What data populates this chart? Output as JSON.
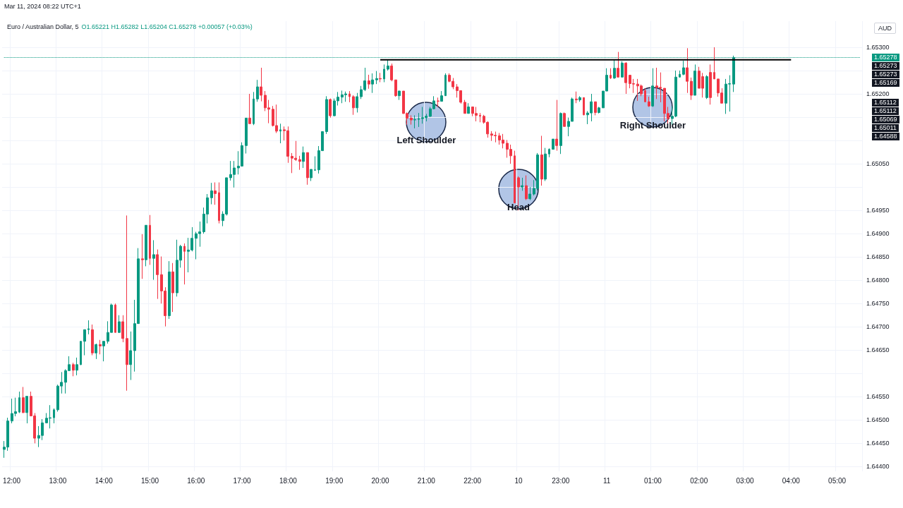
{
  "chart_data": {
    "type": "candlestick",
    "title": "Euro / Australian Dollar, 5",
    "subtitle": "O1.65221 H1.65282 L1.65204 C1.65278 +0.00057 (+0.03%)",
    "ylabel": "AUD",
    "categories": [
      null,
      null,
      "12:00",
      null,
      null,
      null,
      null,
      null,
      null,
      null,
      null,
      null,
      null,
      null,
      "13:00",
      null,
      null,
      null,
      null,
      null,
      null,
      null,
      null,
      null,
      null,
      null,
      "14:00",
      null,
      null,
      null,
      null,
      null,
      null,
      null,
      null,
      null,
      null,
      null,
      "15:00",
      null,
      null,
      null,
      null,
      null,
      null,
      null,
      null,
      null,
      null,
      null,
      "16:00",
      null,
      null,
      null,
      null,
      null,
      null,
      null,
      null,
      null,
      null,
      null,
      "17:00",
      null,
      null,
      null,
      null,
      null,
      null,
      null,
      null,
      null,
      null,
      null,
      "18:00",
      null,
      null,
      null,
      null,
      null,
      null,
      null,
      null,
      null,
      null,
      null,
      "19:00",
      null,
      null,
      null,
      null,
      null,
      null,
      null,
      null,
      null,
      null,
      null,
      "20:00",
      null,
      null,
      null,
      null,
      null,
      null,
      null,
      null,
      null,
      null,
      null,
      "21:00",
      null,
      null,
      null,
      null,
      null,
      null,
      null,
      null,
      null,
      null,
      null,
      "22:00",
      null,
      null,
      null,
      null,
      null,
      null,
      null,
      null,
      null,
      null,
      null,
      "10",
      null,
      null,
      null,
      null,
      null,
      null,
      null,
      null,
      null,
      null,
      "23:00",
      null,
      null,
      null,
      null,
      null,
      null,
      null,
      null,
      null,
      null,
      null,
      "11",
      null,
      null,
      null,
      null,
      null,
      null,
      null,
      null,
      null,
      null,
      null,
      "01:00",
      null,
      null,
      null,
      null,
      null,
      null,
      null,
      null,
      null,
      null,
      null,
      "02:00",
      null,
      null,
      null,
      null,
      null,
      null,
      null,
      null,
      null,
      null,
      null,
      "03:00",
      null,
      null,
      null,
      null,
      null,
      null,
      null,
      null,
      null,
      null,
      null,
      "04:00",
      null,
      null,
      null,
      null,
      null,
      null,
      null,
      null,
      null,
      null,
      null,
      "05:00",
      null,
      null,
      null,
      null,
      null,
      null
    ],
    "series": [
      {
        "type": "candlestick",
        "ohlc": [
          [
            1.64437,
            1.64455,
            1.64419,
            1.64442
          ],
          [
            1.64442,
            1.64505,
            1.64434,
            1.64498
          ],
          [
            1.64498,
            1.64546,
            1.64493,
            1.64514
          ],
          [
            1.64514,
            1.64548,
            1.64508,
            1.64518
          ],
          [
            1.64517,
            1.64561,
            1.64515,
            1.64548
          ],
          [
            1.64548,
            1.64571,
            1.64515,
            1.64516
          ],
          [
            1.64516,
            1.64551,
            1.64493,
            1.64551
          ],
          [
            1.64551,
            1.64561,
            1.64508,
            1.64509
          ],
          [
            1.64509,
            1.64515,
            1.6445,
            1.64461
          ],
          [
            1.64461,
            1.64487,
            1.64442,
            1.64467
          ],
          [
            1.64467,
            1.64502,
            1.64457,
            1.64494
          ],
          [
            1.64494,
            1.64515,
            1.64493,
            1.64504
          ],
          [
            1.64504,
            1.64532,
            1.64482,
            1.64505
          ],
          [
            1.64505,
            1.64525,
            1.64493,
            1.64522
          ],
          [
            1.64522,
            1.64576,
            1.64518,
            1.64573
          ],
          [
            1.64573,
            1.64603,
            1.64557,
            1.64581
          ],
          [
            1.64581,
            1.64609,
            1.64557,
            1.64606
          ],
          [
            1.64606,
            1.64637,
            1.64606,
            1.64619
          ],
          [
            1.64619,
            1.64623,
            1.64594,
            1.64607
          ],
          [
            1.64607,
            1.64634,
            1.64596,
            1.64619
          ],
          [
            1.64619,
            1.64669,
            1.64618,
            1.64669
          ],
          [
            1.64669,
            1.64694,
            1.64639,
            1.64694
          ],
          [
            1.64694,
            1.64714,
            1.64684,
            1.64696
          ],
          [
            1.64694,
            1.64705,
            1.64639,
            1.64644
          ],
          [
            1.64644,
            1.64664,
            1.64631,
            1.64662
          ],
          [
            1.64662,
            1.64672,
            1.64641,
            1.64659
          ],
          [
            1.64659,
            1.64669,
            1.64626,
            1.64669
          ],
          [
            1.64669,
            1.64712,
            1.64664,
            1.64688
          ],
          [
            1.64688,
            1.6475,
            1.64688,
            1.64747
          ],
          [
            1.64747,
            1.6475,
            1.64688,
            1.64688
          ],
          [
            1.64688,
            1.64725,
            1.64687,
            1.64711
          ],
          [
            1.64711,
            1.64725,
            1.64667,
            1.64675
          ],
          [
            1.64675,
            1.64939,
            1.64563,
            1.64619
          ],
          [
            1.64619,
            1.6469,
            1.64586,
            1.64649
          ],
          [
            1.64649,
            1.64758,
            1.64604,
            1.64707
          ],
          [
            1.64707,
            1.64869,
            1.64707,
            1.64846
          ],
          [
            1.64846,
            1.64899,
            1.64803,
            1.64844
          ],
          [
            1.64844,
            1.64918,
            1.6483,
            1.64918
          ],
          [
            1.64918,
            1.6494,
            1.64833,
            1.64847
          ],
          [
            1.64847,
            1.64886,
            1.64801,
            1.64855
          ],
          [
            1.64855,
            1.64866,
            1.6476,
            1.64812
          ],
          [
            1.64812,
            1.64851,
            1.6475,
            1.64777
          ],
          [
            1.64777,
            1.64785,
            1.64701,
            1.64724
          ],
          [
            1.64724,
            1.64841,
            1.64717,
            1.64818
          ],
          [
            1.64818,
            1.64837,
            1.64732,
            1.64773
          ],
          [
            1.64773,
            1.64887,
            1.64765,
            1.64843
          ],
          [
            1.64843,
            1.64876,
            1.64827,
            1.64873
          ],
          [
            1.64873,
            1.64879,
            1.64791,
            1.64862
          ],
          [
            1.64862,
            1.64891,
            1.64817,
            1.64865
          ],
          [
            1.64865,
            1.64914,
            1.64862,
            1.6489
          ],
          [
            1.6489,
            1.64904,
            1.64845,
            1.649
          ],
          [
            1.649,
            1.64926,
            1.64872,
            1.64904
          ],
          [
            1.64904,
            1.64956,
            1.649,
            1.64942
          ],
          [
            1.64942,
            1.64985,
            1.64922,
            1.64977
          ],
          [
            1.64977,
            1.65009,
            1.64963,
            1.64992
          ],
          [
            1.64992,
            1.6501,
            1.64962,
            1.64986
          ],
          [
            1.64988,
            1.6501,
            1.64922,
            1.64928
          ],
          [
            1.64928,
            1.64948,
            1.64916,
            1.64942
          ],
          [
            1.64942,
            1.6502,
            1.64939,
            1.6502
          ],
          [
            1.6502,
            1.65056,
            1.65014,
            1.65027
          ],
          [
            1.65027,
            1.65056,
            1.64999,
            1.65041
          ],
          [
            1.65041,
            1.65077,
            1.65027,
            1.65045
          ],
          [
            1.65045,
            1.65096,
            1.65044,
            1.65089
          ],
          [
            1.65089,
            1.65148,
            1.65072,
            1.65148
          ],
          [
            1.65148,
            1.652,
            1.65136,
            1.65136
          ],
          [
            1.65136,
            1.65204,
            1.65133,
            1.65189
          ],
          [
            1.65189,
            1.6523,
            1.65183,
            1.65215
          ],
          [
            1.65215,
            1.65256,
            1.65184,
            1.65197
          ],
          [
            1.65197,
            1.65206,
            1.65163,
            1.6517
          ],
          [
            1.6517,
            1.65187,
            1.65137,
            1.65167
          ],
          [
            1.65167,
            1.65174,
            1.6513,
            1.65132
          ],
          [
            1.65132,
            1.65177,
            1.65116,
            1.6512
          ],
          [
            1.6512,
            1.65136,
            1.65094,
            1.65123
          ],
          [
            1.65123,
            1.6513,
            1.651,
            1.65121
          ],
          [
            1.65121,
            1.6513,
            1.65052,
            1.65066
          ],
          [
            1.65066,
            1.65073,
            1.6503,
            1.65062
          ],
          [
            1.65062,
            1.65099,
            1.65056,
            1.65059
          ],
          [
            1.65059,
            1.65067,
            1.65037,
            1.65055
          ],
          [
            1.65055,
            1.65087,
            1.65041,
            1.65074
          ],
          [
            1.65074,
            1.65074,
            1.65005,
            1.6502
          ],
          [
            1.6502,
            1.65038,
            1.65013,
            1.65038
          ],
          [
            1.65036,
            1.65066,
            1.65036,
            1.65037
          ],
          [
            1.65037,
            1.65088,
            1.65029,
            1.65078
          ],
          [
            1.65078,
            1.65119,
            1.65078,
            1.65119
          ],
          [
            1.65119,
            1.65195,
            1.65114,
            1.65188
          ],
          [
            1.65188,
            1.6519,
            1.65149,
            1.65153
          ],
          [
            1.65153,
            1.6519,
            1.65152,
            1.65185
          ],
          [
            1.65185,
            1.65204,
            1.65175,
            1.65193
          ],
          [
            1.65193,
            1.65207,
            1.6518,
            1.65198
          ],
          [
            1.65198,
            1.65205,
            1.65183,
            1.652
          ],
          [
            1.652,
            1.65206,
            1.65182,
            1.65194
          ],
          [
            1.65194,
            1.65197,
            1.65155,
            1.6517
          ],
          [
            1.6517,
            1.65202,
            1.6516,
            1.65194
          ],
          [
            1.65194,
            1.65217,
            1.65189,
            1.65209
          ],
          [
            1.65209,
            1.65256,
            1.65206,
            1.65228
          ],
          [
            1.65228,
            1.65241,
            1.65211,
            1.65221
          ],
          [
            1.65221,
            1.65244,
            1.65202,
            1.6523
          ],
          [
            1.6523,
            1.65249,
            1.65221,
            1.65233
          ],
          [
            1.65233,
            1.65245,
            1.65225,
            1.65232
          ],
          [
            1.65232,
            1.65263,
            1.65225,
            1.65253
          ],
          [
            1.65253,
            1.65273,
            1.6525,
            1.6526
          ],
          [
            1.6526,
            1.65265,
            1.65227,
            1.6523
          ],
          [
            1.6523,
            1.6523,
            1.65194,
            1.65196
          ],
          [
            1.65196,
            1.65207,
            1.65187,
            1.65206
          ],
          [
            1.65206,
            1.65206,
            1.65157,
            1.65158
          ],
          [
            1.65158,
            1.6516,
            1.65134,
            1.65148
          ],
          [
            1.65148,
            1.65154,
            1.65134,
            1.65144
          ],
          [
            1.65144,
            1.65154,
            1.65126,
            1.65145
          ],
          [
            1.65145,
            1.65159,
            1.65129,
            1.65147
          ],
          [
            1.65147,
            1.65172,
            1.65136,
            1.65149
          ],
          [
            1.65149,
            1.65157,
            1.65141,
            1.65152
          ],
          [
            1.65152,
            1.65172,
            1.6515,
            1.65168
          ],
          [
            1.65168,
            1.65195,
            1.65167,
            1.65185
          ],
          [
            1.65185,
            1.65192,
            1.65172,
            1.65184
          ],
          [
            1.65184,
            1.65206,
            1.65184,
            1.65196
          ],
          [
            1.65196,
            1.65244,
            1.65196,
            1.6524
          ],
          [
            1.6524,
            1.65244,
            1.65225,
            1.65227
          ],
          [
            1.65227,
            1.65234,
            1.6521,
            1.65215
          ],
          [
            1.65215,
            1.65221,
            1.65192,
            1.65207
          ],
          [
            1.65207,
            1.65207,
            1.65179,
            1.65182
          ],
          [
            1.65182,
            1.65187,
            1.65158,
            1.65158
          ],
          [
            1.65158,
            1.6518,
            1.65158,
            1.65172
          ],
          [
            1.65172,
            1.65172,
            1.65152,
            1.65158
          ],
          [
            1.65158,
            1.65172,
            1.65141,
            1.65154
          ],
          [
            1.65154,
            1.65159,
            1.65139,
            1.65152
          ],
          [
            1.65152,
            1.65155,
            1.65136,
            1.65139
          ],
          [
            1.65139,
            1.65141,
            1.65106,
            1.65114
          ],
          [
            1.65114,
            1.6512,
            1.65099,
            1.65111
          ],
          [
            1.65111,
            1.65119,
            1.65096,
            1.6511
          ],
          [
            1.6511,
            1.65116,
            1.65091,
            1.65101
          ],
          [
            1.65101,
            1.65114,
            1.65083,
            1.65094
          ],
          [
            1.65094,
            1.65101,
            1.65063,
            1.65081
          ],
          [
            1.65081,
            1.65091,
            1.6505,
            1.65067
          ],
          [
            1.65067,
            1.65078,
            1.64965,
            1.64966
          ],
          [
            1.6502,
            1.65023,
            1.6495,
            1.65
          ],
          [
            1.65,
            1.6502,
            1.64992,
            1.65003
          ],
          [
            1.65003,
            1.65025,
            1.64972,
            1.64975
          ],
          [
            1.64975,
            1.65,
            1.64972,
            1.64985
          ],
          [
            1.64985,
            1.65015,
            1.64982,
            1.64997
          ],
          [
            1.64997,
            1.65073,
            1.64993,
            1.65069
          ],
          [
            1.65069,
            1.6511,
            1.65003,
            1.65017
          ],
          [
            1.65017,
            1.65084,
            1.65013,
            1.65071
          ],
          [
            1.65071,
            1.65083,
            1.65064,
            1.65081
          ],
          [
            1.65081,
            1.65103,
            1.65081,
            1.65103
          ],
          [
            1.65103,
            1.65187,
            1.65078,
            1.65089
          ],
          [
            1.65089,
            1.6516,
            1.65071,
            1.65158
          ],
          [
            1.65158,
            1.6516,
            1.6513,
            1.6513
          ],
          [
            1.6513,
            1.65149,
            1.65109,
            1.65141
          ],
          [
            1.65141,
            1.65192,
            1.65141,
            1.65189
          ],
          [
            1.65189,
            1.65205,
            1.6518,
            1.65187
          ],
          [
            1.65187,
            1.65195,
            1.65183,
            1.65192
          ],
          [
            1.65192,
            1.65192,
            1.65154,
            1.65155
          ],
          [
            1.65155,
            1.65163,
            1.65135,
            1.65159
          ],
          [
            1.65159,
            1.652,
            1.65141,
            1.65183
          ],
          [
            1.65183,
            1.65183,
            1.65154,
            1.6516
          ],
          [
            1.6516,
            1.65172,
            1.65158,
            1.6517
          ],
          [
            1.6517,
            1.65206,
            1.6517,
            1.65206
          ],
          [
            1.65206,
            1.65255,
            1.65206,
            1.6524
          ],
          [
            1.6524,
            1.65255,
            1.65232,
            1.65234
          ],
          [
            1.65234,
            1.65273,
            1.65232,
            1.65255
          ],
          [
            1.65255,
            1.6529,
            1.65235,
            1.65236
          ],
          [
            1.65236,
            1.6527,
            1.65235,
            1.65266
          ],
          [
            1.65266,
            1.65268,
            1.652,
            1.65224
          ],
          [
            1.6524,
            1.6524,
            1.65212,
            1.65222
          ],
          [
            1.65222,
            1.65232,
            1.65202,
            1.65221
          ],
          [
            1.65221,
            1.65232,
            1.65185,
            1.65217
          ],
          [
            1.65217,
            1.6522,
            1.65195,
            1.652
          ],
          [
            1.65207,
            1.65212,
            1.65182,
            1.65183
          ],
          [
            1.65183,
            1.65194,
            1.65172,
            1.65174
          ],
          [
            1.65174,
            1.65255,
            1.65172,
            1.65217
          ],
          [
            1.65217,
            1.65256,
            1.65189,
            1.65214
          ],
          [
            1.65214,
            1.65246,
            1.65182,
            1.65212
          ],
          [
            1.65212,
            1.65212,
            1.65141,
            1.65158
          ],
          [
            1.65158,
            1.65172,
            1.65134,
            1.65147
          ],
          [
            1.65147,
            1.65173,
            1.65134,
            1.65152
          ],
          [
            1.65152,
            1.6525,
            1.6515,
            1.65236
          ],
          [
            1.65236,
            1.6525,
            1.65235,
            1.65242
          ],
          [
            1.65242,
            1.65271,
            1.6524,
            1.65256
          ],
          [
            1.65256,
            1.65298,
            1.65202,
            1.65227
          ],
          [
            1.65227,
            1.65235,
            1.65187,
            1.65197
          ],
          [
            1.65197,
            1.65263,
            1.65197,
            1.65249
          ],
          [
            1.65249,
            1.65258,
            1.65212,
            1.65212
          ],
          [
            1.65237,
            1.65245,
            1.65192,
            1.65212
          ],
          [
            1.65192,
            1.6524,
            1.65189,
            1.65237
          ],
          [
            1.65246,
            1.65263,
            1.65177,
            1.65192
          ],
          [
            1.65246,
            1.653,
            1.65232,
            1.65232
          ],
          [
            1.65232,
            1.65232,
            1.65194,
            1.65202
          ],
          [
            1.65202,
            1.65212,
            1.6518,
            1.6518
          ],
          [
            1.6518,
            1.65232,
            1.65157,
            1.65221
          ],
          [
            1.65221,
            1.6524,
            1.65162,
            1.65222
          ],
          [
            1.65221,
            1.65282,
            1.65204,
            1.65278
          ],
          null,
          null,
          null,
          null,
          null,
          null,
          null,
          null,
          null,
          null,
          null,
          null,
          null,
          null,
          null,
          null,
          null,
          null,
          null,
          null,
          null,
          null,
          null,
          null,
          null,
          null,
          null,
          null,
          null,
          null,
          null,
          null,
          null
        ]
      },
      {
        "type": "line",
        "x": [
          "20:00",
          "04:00"
        ],
        "values": [
          1.65273,
          1.65273
        ],
        "color": "#000000"
      }
    ],
    "ylim": [
      1.6439,
      1.65356
    ],
    "yticks": [
      {
        "value": 1.653,
        "label": "1.65300"
      },
      {
        "value": 1.6525,
        "label": null
      },
      {
        "value": 1.652,
        "label": "1.65200"
      },
      {
        "value": 1.6515,
        "label": null
      },
      {
        "value": 1.651,
        "label": null
      },
      {
        "value": 1.6505,
        "label": "1.65050"
      },
      {
        "value": 1.65,
        "label": null
      },
      {
        "value": 1.6495,
        "label": "1.64950"
      },
      {
        "value": 1.649,
        "label": "1.64900"
      },
      {
        "value": 1.6485,
        "label": "1.64850"
      },
      {
        "value": 1.648,
        "label": "1.64800"
      },
      {
        "value": 1.6475,
        "label": "1.64750"
      },
      {
        "value": 1.647,
        "label": "1.64700"
      },
      {
        "value": 1.6465,
        "label": "1.64650"
      },
      {
        "value": 1.646,
        "label": null
      },
      {
        "value": 1.6455,
        "label": "1.64550"
      },
      {
        "value": 1.645,
        "label": "1.64500"
      },
      {
        "value": 1.6445,
        "label": "1.64450"
      },
      {
        "value": 1.644,
        "label": "1.64400"
      }
    ],
    "grid": true,
    "ref_lines": [
      {
        "axis": "y",
        "value": 1.65278,
        "label": "1.65278",
        "color": "#089981",
        "line_style": "dotted"
      }
    ],
    "annotations": [
      "Mar 11, 2024 08:22 UTC+1",
      {
        "text": "Left Shoulder",
        "x": "21:00",
        "y": 1.6514
      },
      {
        "text": "Head",
        "x": "10",
        "y": 1.64996
      },
      {
        "text": "Right Shoulder",
        "x": "01:00",
        "y": 1.65172
      },
      "1.65273",
      "1.65273",
      "1.65169",
      "1.65112",
      "1.65112",
      "1.65069",
      "1.65011",
      "1.64588"
    ]
  }
}
